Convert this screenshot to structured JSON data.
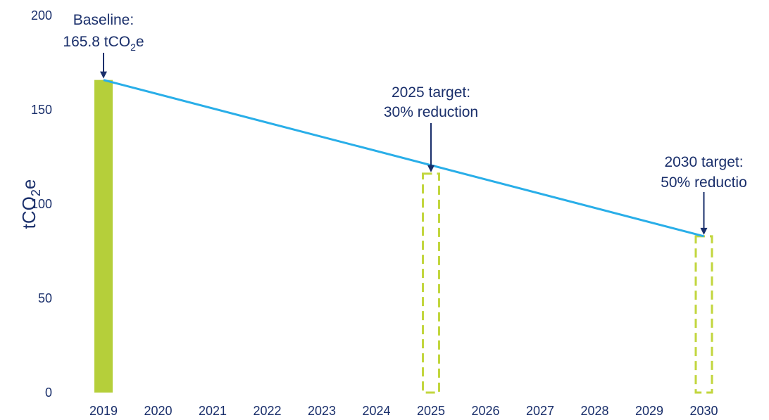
{
  "colors": {
    "text": "#1a2f6b",
    "bar_fill": "#b5cf3a",
    "target_outline": "#c2d63e",
    "trajectory_line": "#29aee8",
    "arrow": "#1a2f6b",
    "background": "#ffffff"
  },
  "chart_data": {
    "type": "bar",
    "categories": [
      "2019",
      "2020",
      "2021",
      "2022",
      "2023",
      "2024",
      "2025",
      "2026",
      "2027",
      "2028",
      "2029",
      "2030"
    ],
    "ylabel": "tCO2e",
    "ylim": [
      0,
      200
    ],
    "yticks": [
      0,
      50,
      100,
      150,
      200
    ],
    "grid": false,
    "legend": "none",
    "series": [
      {
        "values": [
          165.8,
          null,
          null,
          null,
          null,
          null,
          null,
          null,
          null,
          null,
          null,
          null
        ],
        "style": "solid"
      },
      {
        "values": [
          null,
          null,
          null,
          null,
          null,
          null,
          116.1,
          null,
          null,
          null,
          null,
          82.9
        ],
        "style": "dashed-outline"
      }
    ],
    "trajectory": {
      "x": [
        "2019",
        "2030"
      ],
      "y": [
        165.8,
        82.9
      ]
    },
    "annotations": [
      {
        "lines": [
          "Baseline:",
          "165.8 tCO2e"
        ],
        "x": "2019",
        "y": 165.8
      },
      {
        "lines": [
          "2025 target:",
          "30% reduction"
        ],
        "x": "2025",
        "y": 116.1
      },
      {
        "lines": [
          "2030 target:",
          "50% reductio"
        ],
        "x": "2030",
        "y": 82.9
      }
    ]
  }
}
